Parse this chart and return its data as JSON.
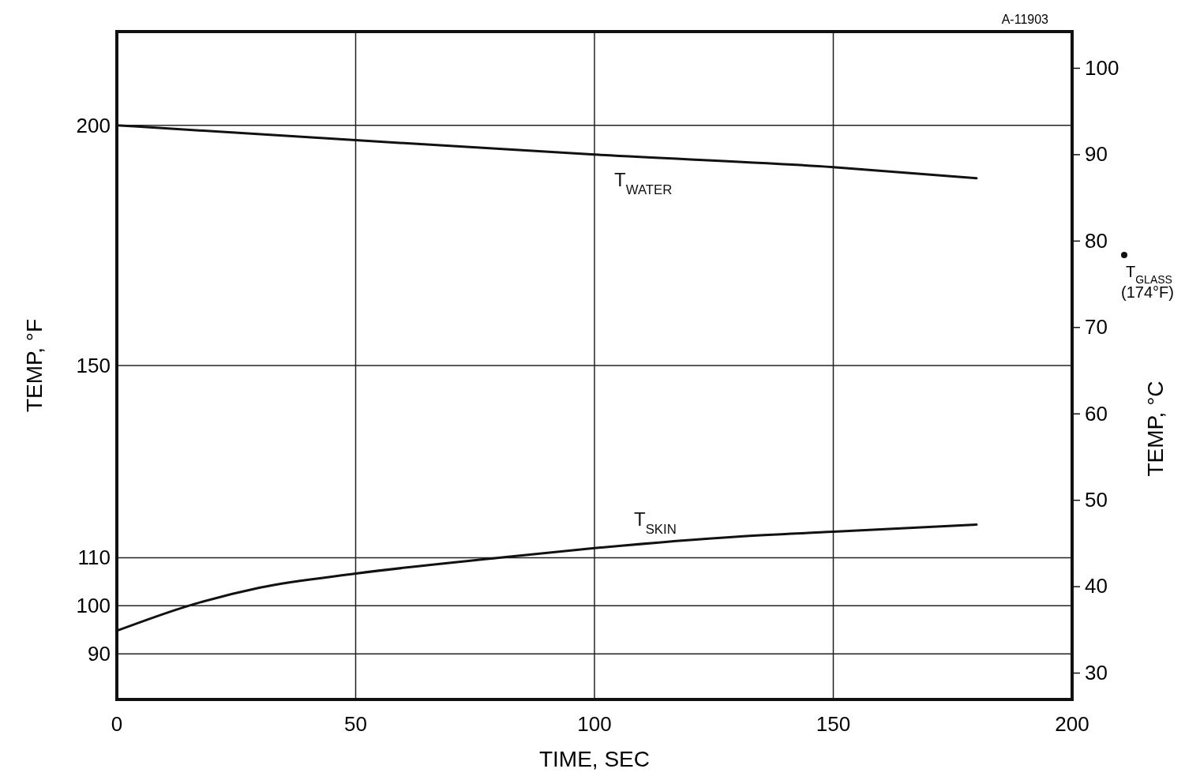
{
  "chart_data": {
    "type": "line",
    "xlabel": "TIME, SEC",
    "ylabel": "TEMP, °F",
    "y2label": "TEMP, °C",
    "xlim": [
      0,
      200
    ],
    "xticks": [
      0,
      50,
      100,
      150,
      200
    ],
    "ylim": [
      80.5,
      219.5
    ],
    "yticks": [
      90,
      100,
      110,
      150,
      200
    ],
    "y2lim": [
      26.9,
      104.2
    ],
    "y2ticks": [
      30,
      40,
      50,
      60,
      70,
      80,
      90,
      100
    ],
    "grid": true,
    "series": [
      {
        "name": "T$_{WATER}$",
        "color": "#111111",
        "x": [
          0,
          50,
          100,
          150,
          180
        ],
        "values": [
          200,
          196.9,
          193.9,
          191.3,
          189
        ]
      },
      {
        "name": "T$_{SKIN}$",
        "color": "#111111",
        "x": [
          0,
          15,
          30,
          50,
          80,
          100,
          130,
          150,
          180
        ],
        "values": [
          94.8,
          100,
          103.8,
          106.7,
          110,
          112,
          114.4,
          115.4,
          116.9
        ]
      }
    ],
    "annotations": [
      "T$_{GLASS}$ (174°F)",
      "A-11903"
    ]
  }
}
